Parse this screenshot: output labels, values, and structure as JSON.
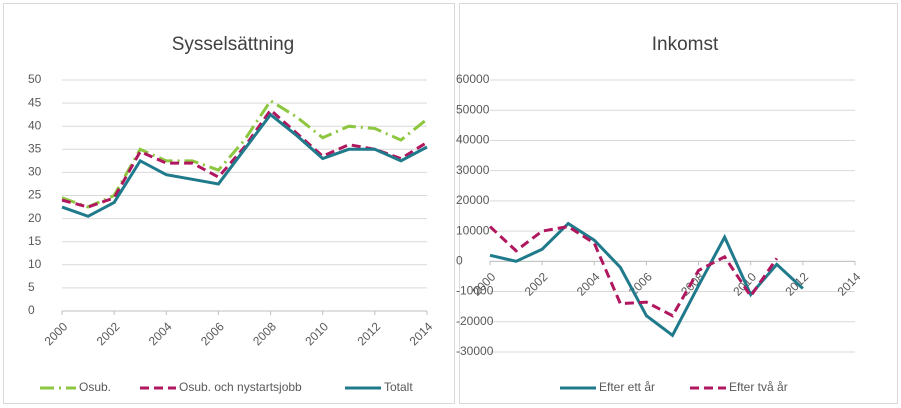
{
  "chart_data": [
    {
      "type": "line",
      "title": "Sysselsättning",
      "x": [
        2000,
        2001,
        2002,
        2003,
        2004,
        2005,
        2006,
        2007,
        2008,
        2009,
        2010,
        2011,
        2012,
        2013,
        2014
      ],
      "xlim": [
        2000,
        2014
      ],
      "xticks": [
        2000,
        2002,
        2004,
        2006,
        2008,
        2010,
        2012,
        2014
      ],
      "ylim": [
        0,
        50
      ],
      "yticks": [
        0,
        5,
        10,
        15,
        20,
        25,
        30,
        35,
        40,
        45,
        50
      ],
      "grid": true,
      "legend": "bottom",
      "series": [
        {
          "name": "Osub.",
          "color": "#8dc63f",
          "style": "dash-dot",
          "values": [
            24.5,
            22.5,
            25,
            35,
            32.5,
            32.5,
            30.5,
            37,
            45.5,
            42,
            37.5,
            40,
            39.5,
            37,
            41.5
          ]
        },
        {
          "name": "Osub. och nystartsjobb",
          "color": "#b0175f",
          "style": "dash",
          "values": [
            24,
            22.5,
            24.5,
            34.5,
            32,
            32,
            29,
            35.5,
            43.5,
            38.5,
            33.5,
            36,
            35,
            33,
            36.5
          ]
        },
        {
          "name": "Totalt",
          "color": "#1f7a8c",
          "style": "solid",
          "values": [
            22.5,
            20.5,
            23.5,
            32.5,
            29.5,
            28.5,
            27.5,
            35,
            42.5,
            38,
            33,
            35,
            35,
            32.5,
            35.5
          ]
        }
      ]
    },
    {
      "type": "line",
      "title": "Inkomst",
      "x": [
        2000,
        2001,
        2002,
        2003,
        2004,
        2005,
        2006,
        2007,
        2008,
        2009,
        2010,
        2011,
        2012,
        2013,
        2014
      ],
      "xlim": [
        2000,
        2014
      ],
      "xticks": [
        2000,
        2002,
        2004,
        2006,
        2008,
        2010,
        2012,
        2014
      ],
      "ylim": [
        -30000,
        60000
      ],
      "yticks": [
        -30000,
        -20000,
        -10000,
        0,
        10000,
        20000,
        30000,
        40000,
        50000,
        60000
      ],
      "grid": true,
      "legend": "bottom",
      "series": [
        {
          "name": "Efter ett år",
          "color": "#1f7a8c",
          "style": "solid",
          "values": [
            2000,
            0,
            4000,
            12500,
            7000,
            -2000,
            -18000,
            -24500,
            -8000,
            8000,
            -11000,
            -1000,
            -9000,
            null,
            null
          ]
        },
        {
          "name": "Efter två år",
          "color": "#b0175f",
          "style": "dash",
          "values": [
            11500,
            3500,
            10000,
            11500,
            6000,
            -14000,
            -13500,
            -18000,
            -3000,
            1500,
            -11500,
            1000,
            null,
            null,
            null
          ]
        }
      ]
    }
  ]
}
